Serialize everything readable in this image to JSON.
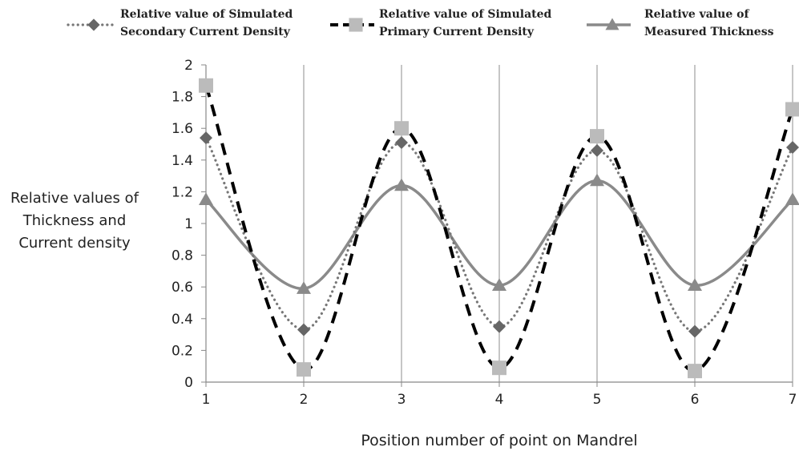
{
  "chart_data": {
    "type": "line",
    "x": [
      1,
      2,
      3,
      4,
      5,
      6,
      7
    ],
    "xlabel": "Position number of point on Mandrel",
    "ylabel": [
      "Relative values of",
      "Thickness and",
      "Current density"
    ],
    "ylim": [
      0,
      2
    ],
    "ytick_step": 0.2,
    "grid": "vertical",
    "legend_position": "top",
    "series": [
      {
        "name": [
          "Relative value of Simulated",
          "Secondary Current Density"
        ],
        "values": [
          1.54,
          0.33,
          1.51,
          0.35,
          1.46,
          0.32,
          1.48
        ],
        "color": "#777777",
        "marker": "diamond",
        "marker_color": "#666666",
        "line_style": "dotted"
      },
      {
        "name": [
          "Relative value of Simulated",
          "Primary Current Density"
        ],
        "values": [
          1.87,
          0.08,
          1.6,
          0.09,
          1.55,
          0.07,
          1.72
        ],
        "color": "#000000",
        "marker": "square",
        "marker_color": "#bbbbbb",
        "line_style": "dashed"
      },
      {
        "name": [
          "Relative value of",
          "Measured Thickness"
        ],
        "values": [
          1.15,
          0.59,
          1.24,
          0.61,
          1.27,
          0.61,
          1.15
        ],
        "color": "#8a8a8a",
        "marker": "triangle",
        "marker_color": "#8a8a8a",
        "line_style": "solid"
      }
    ]
  }
}
